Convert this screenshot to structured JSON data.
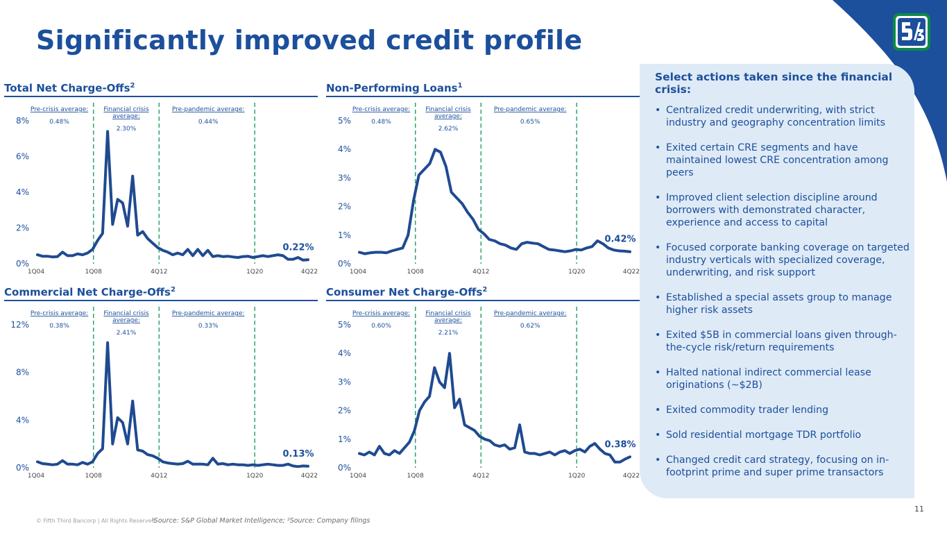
{
  "page": {
    "title": "Significantly improved credit profile",
    "footer_copyright": "© Fifth Third Bancorp | All Rights Reserved",
    "footer_note": "¹Source: S&P Global Market Intelligence; ²Source: Company filings",
    "page_number": "11"
  },
  "colors": {
    "primary": "#1c4f9c",
    "line": "#1f4a91",
    "divider_dash": "#2aa66a",
    "panel_bg": "#deeaf6",
    "logo_green": "#0a8a4a"
  },
  "sidebar": {
    "title": "Select actions taken since the financial crisis:",
    "items": [
      "Centralized credit underwriting, with strict industry and geography concentration limits",
      "Exited certain CRE segments and have maintained lowest CRE concentration among peers",
      "Improved client selection discipline around borrowers with demonstrated character, experience and access to capital",
      "Focused corporate banking coverage on targeted industry verticals with specialized coverage, underwriting, and risk support",
      "Established a special assets group to manage higher risk assets",
      "Exited $5B in commercial loans given through-the-cycle risk/return requirements",
      "Halted national indirect commercial lease originations (~$2B)",
      "Exited commodity trader lending",
      "Sold residential mortgage TDR portfolio",
      "Changed credit card strategy, focusing on in-footprint prime and super prime transactors"
    ]
  },
  "chart_data": [
    {
      "type": "line",
      "title": "Total Net Charge-Offs",
      "title_sup": "2",
      "x_ticks": [
        "1Q04",
        "1Q08",
        "4Q12",
        "1Q20",
        "4Q22"
      ],
      "y_ticks": [
        "0%",
        "2%",
        "4%",
        "6%",
        "8%"
      ],
      "ylim": [
        0,
        8
      ],
      "period_labels": [
        "Pre-crisis average:",
        "Financial crisis average:",
        "Pre-pandemic average:"
      ],
      "period_values": [
        "0.48%",
        "2.30%",
        "0.44%"
      ],
      "end_label": "0.22%",
      "series": [
        {
          "values": [
            0.5,
            0.42,
            0.42,
            0.38,
            0.4,
            0.65,
            0.45,
            0.45,
            0.55,
            0.5,
            0.6,
            0.8,
            1.3,
            1.7,
            7.4,
            2.2,
            3.6,
            3.4,
            2.1,
            4.9,
            1.6,
            1.8,
            1.4,
            1.15,
            0.9,
            0.75,
            0.65,
            0.5,
            0.6,
            0.5,
            0.8,
            0.45,
            0.8,
            0.45,
            0.75,
            0.4,
            0.45,
            0.4,
            0.42,
            0.38,
            0.35,
            0.4,
            0.42,
            0.35,
            0.4,
            0.45,
            0.4,
            0.45,
            0.5,
            0.45,
            0.25,
            0.25,
            0.35,
            0.2,
            0.22
          ]
        }
      ]
    },
    {
      "type": "line",
      "title": "Non-Performing Loans",
      "title_sup": "1",
      "x_ticks": [
        "1Q04",
        "1Q08",
        "4Q12",
        "1Q20",
        "4Q22"
      ],
      "y_ticks": [
        "0%",
        "1%",
        "2%",
        "3%",
        "4%",
        "5%"
      ],
      "ylim": [
        0,
        5
      ],
      "period_labels": [
        "Pre-crisis average:",
        "Financial crisis average:",
        "Pre-pandemic average:"
      ],
      "period_values": [
        "0.48%",
        "2.62%",
        "0.65%"
      ],
      "end_label": "0.42%",
      "series": [
        {
          "values": [
            0.4,
            0.35,
            0.38,
            0.4,
            0.4,
            0.38,
            0.45,
            0.5,
            0.55,
            1.0,
            2.2,
            3.1,
            3.3,
            3.5,
            4.0,
            3.9,
            3.4,
            2.5,
            2.3,
            2.1,
            1.8,
            1.55,
            1.2,
            1.05,
            0.85,
            0.8,
            0.7,
            0.65,
            0.55,
            0.5,
            0.7,
            0.75,
            0.72,
            0.7,
            0.6,
            0.5,
            0.48,
            0.45,
            0.42,
            0.45,
            0.5,
            0.48,
            0.55,
            0.6,
            0.8,
            0.7,
            0.55,
            0.48,
            0.45,
            0.44,
            0.42
          ]
        }
      ]
    },
    {
      "type": "line",
      "title": "Commercial Net Charge-Offs",
      "title_sup": "2",
      "x_ticks": [
        "1Q04",
        "1Q08",
        "4Q12",
        "1Q20",
        "4Q22"
      ],
      "y_ticks": [
        "0%",
        "4%",
        "8%",
        "12%"
      ],
      "ylim": [
        0,
        12
      ],
      "period_labels": [
        "Pre-crisis average:",
        "Financial crisis average:",
        "Pre-pandemic average:"
      ],
      "period_values": [
        "0.38%",
        "2.41%",
        "0.33%"
      ],
      "end_label": "0.13%",
      "series": [
        {
          "values": [
            0.5,
            0.35,
            0.3,
            0.25,
            0.3,
            0.6,
            0.3,
            0.3,
            0.25,
            0.45,
            0.3,
            0.5,
            1.2,
            1.6,
            10.5,
            2.0,
            4.2,
            3.8,
            2.0,
            5.6,
            1.5,
            1.4,
            1.1,
            1.0,
            0.8,
            0.5,
            0.4,
            0.35,
            0.3,
            0.35,
            0.55,
            0.3,
            0.3,
            0.3,
            0.25,
            0.8,
            0.3,
            0.35,
            0.25,
            0.3,
            0.25,
            0.25,
            0.2,
            0.25,
            0.2,
            0.25,
            0.3,
            0.25,
            0.2,
            0.2,
            0.3,
            0.15,
            0.1,
            0.15,
            0.13
          ]
        }
      ]
    },
    {
      "type": "line",
      "title": "Consumer Net Charge-Offs",
      "title_sup": "2",
      "x_ticks": [
        "1Q04",
        "1Q08",
        "4Q12",
        "1Q20",
        "4Q22"
      ],
      "y_ticks": [
        "0%",
        "1%",
        "2%",
        "3%",
        "4%",
        "5%"
      ],
      "ylim": [
        0,
        5
      ],
      "period_labels": [
        "Pre-crisis average:",
        "Financial crisis average:",
        "Pre-pandemic average:"
      ],
      "period_values": [
        "0.60%",
        "2.21%",
        "0.62%"
      ],
      "end_label": "0.38%",
      "series": [
        {
          "values": [
            0.5,
            0.45,
            0.55,
            0.45,
            0.75,
            0.5,
            0.45,
            0.6,
            0.5,
            0.7,
            0.9,
            1.3,
            2.0,
            2.3,
            2.5,
            3.5,
            3.0,
            2.8,
            4.0,
            2.1,
            2.4,
            1.5,
            1.4,
            1.3,
            1.1,
            1.0,
            0.95,
            0.8,
            0.75,
            0.8,
            0.65,
            0.7,
            1.5,
            0.55,
            0.5,
            0.5,
            0.45,
            0.5,
            0.55,
            0.45,
            0.55,
            0.6,
            0.5,
            0.6,
            0.65,
            0.55,
            0.75,
            0.85,
            0.65,
            0.5,
            0.45,
            0.2,
            0.2,
            0.3,
            0.38
          ]
        }
      ]
    }
  ]
}
